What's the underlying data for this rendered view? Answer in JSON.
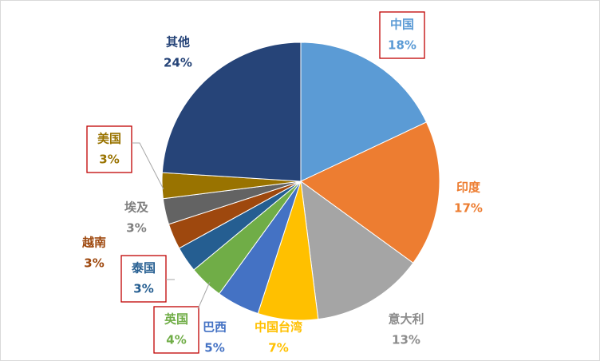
{
  "chart_data": {
    "type": "pie",
    "categories": [
      "中国",
      "印度",
      "意大利",
      "中国台湾",
      "巴西",
      "英国",
      "泰国",
      "越南",
      "埃及",
      "美国",
      "其他"
    ],
    "values": [
      18,
      17,
      13,
      7,
      5,
      4,
      3,
      3,
      3,
      3,
      24
    ],
    "value_labels": [
      "18%",
      "17%",
      "13%",
      "7%",
      "5%",
      "4%",
      "3%",
      "3%",
      "3%",
      "3%",
      "24%"
    ],
    "colors": [
      "#5b9bd5",
      "#ed7d31",
      "#a5a5a5",
      "#ffc000",
      "#4472c4",
      "#70ad47",
      "#255e91",
      "#9e480e",
      "#636363",
      "#997300",
      "#264478"
    ]
  }
}
